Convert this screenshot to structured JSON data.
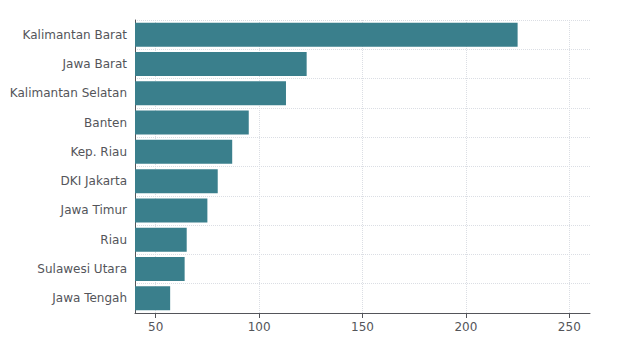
{
  "chart_data": {
    "type": "bar",
    "orientation": "horizontal",
    "categories": [
      "Kalimantan Barat",
      "Jawa Barat",
      "Kalimantan Selatan",
      "Banten",
      "Kep. Riau",
      "DKI Jakarta",
      "Jawa Timur",
      "Riau",
      "Sulawesi Utara",
      "Jawa Tengah"
    ],
    "values": [
      225,
      123,
      113,
      95,
      87,
      80,
      75,
      65,
      64,
      57
    ],
    "color": "#3a7f8c",
    "xlim": [
      40,
      260
    ],
    "xticks": [
      50,
      100,
      150,
      200,
      250
    ],
    "grid": true
  }
}
